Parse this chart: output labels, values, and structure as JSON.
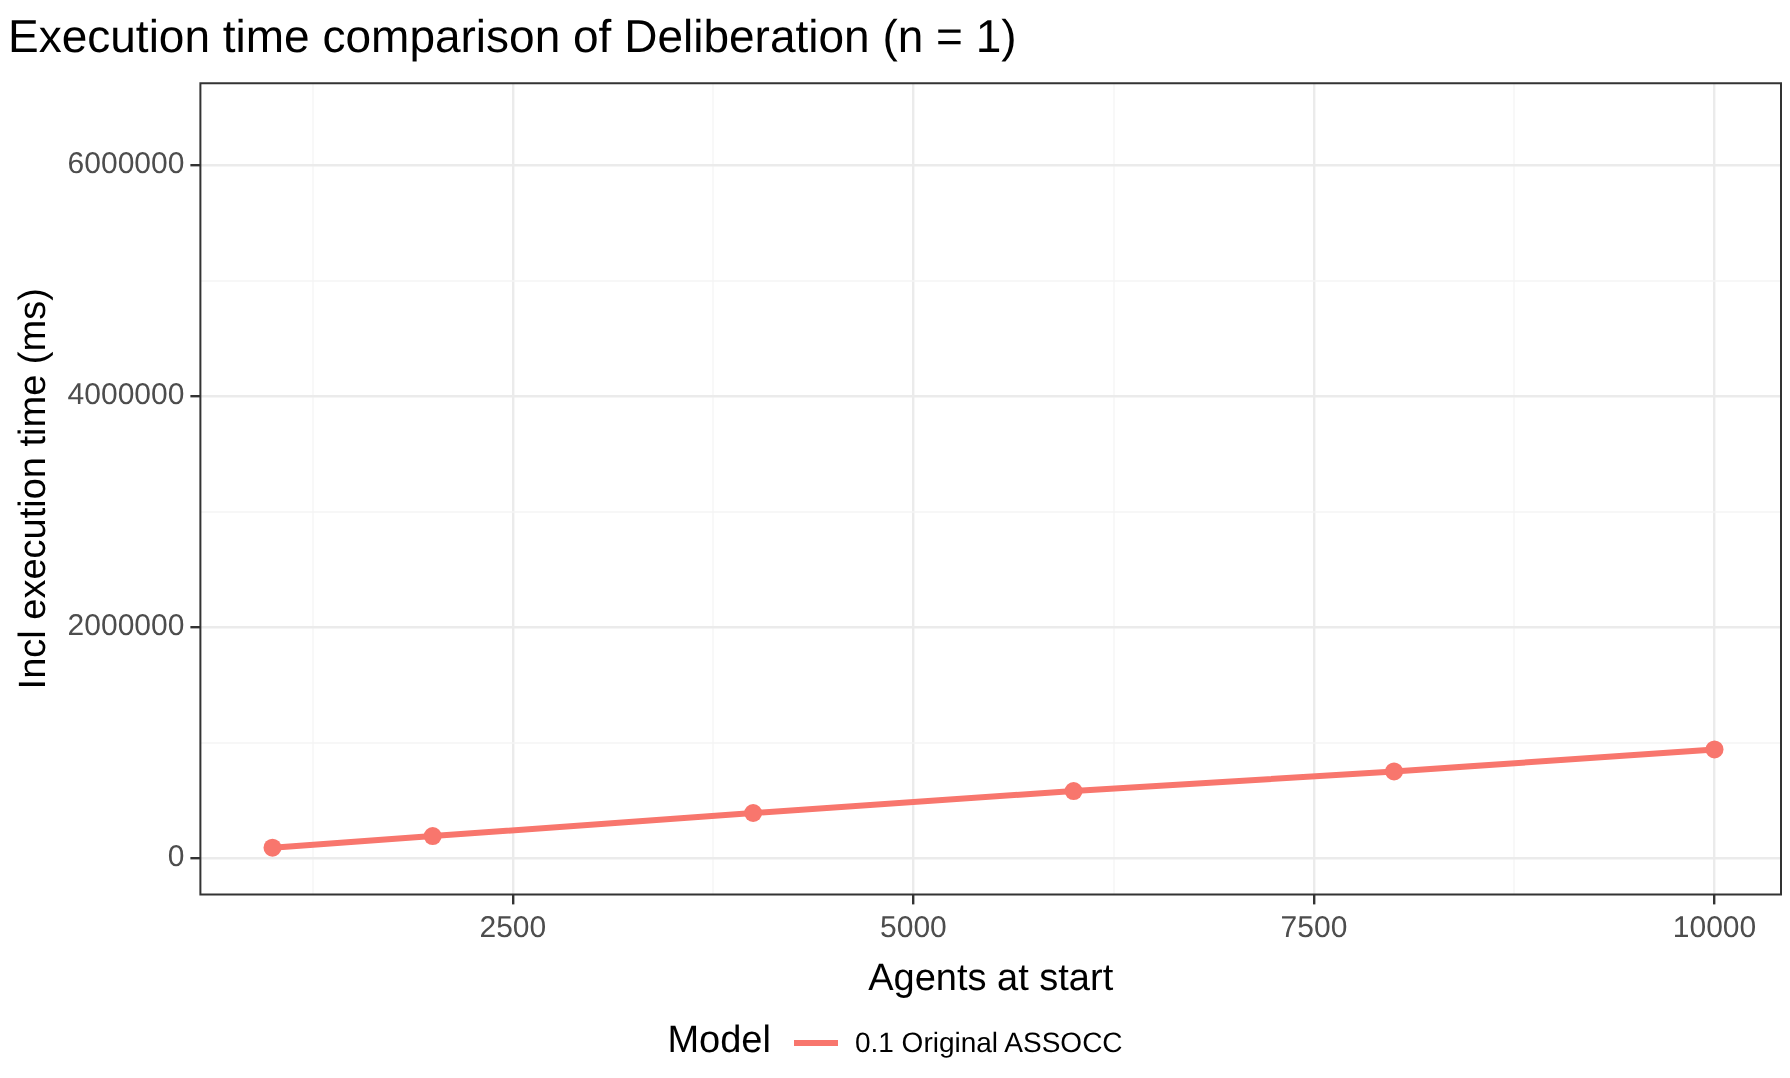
{
  "chart_data": {
    "type": "line",
    "title": "Execution time comparison of Deliberation (n = 1)",
    "xlabel": "Agents at start",
    "ylabel": "Incl execution time (ms)",
    "legend_title": "Model",
    "x": [
      1000,
      2000,
      4000,
      6000,
      8000,
      10000
    ],
    "series": [
      {
        "name": "0.1 Original ASSOCC",
        "color": "#f8766d",
        "values": [
          90000,
          190000,
          390000,
          580000,
          750000,
          940000
        ]
      }
    ],
    "xlim": [
      550,
      10415
    ],
    "ylim": [
      -315000,
      6710000
    ],
    "xticks": [
      {
        "value": 1250,
        "label": null
      },
      2500,
      {
        "value": 3750,
        "label": null
      },
      5000,
      {
        "value": 6250,
        "label": null
      },
      7500,
      {
        "value": 8750,
        "label": null
      },
      10000
    ],
    "yticks": [
      0,
      {
        "value": 1000000,
        "label": null
      },
      2000000,
      {
        "value": 3000000,
        "label": null
      },
      4000000,
      {
        "value": 5000000,
        "label": null
      },
      6000000
    ],
    "grid": true,
    "legend": "bottom",
    "marker": "circle",
    "line_style": "solid"
  }
}
